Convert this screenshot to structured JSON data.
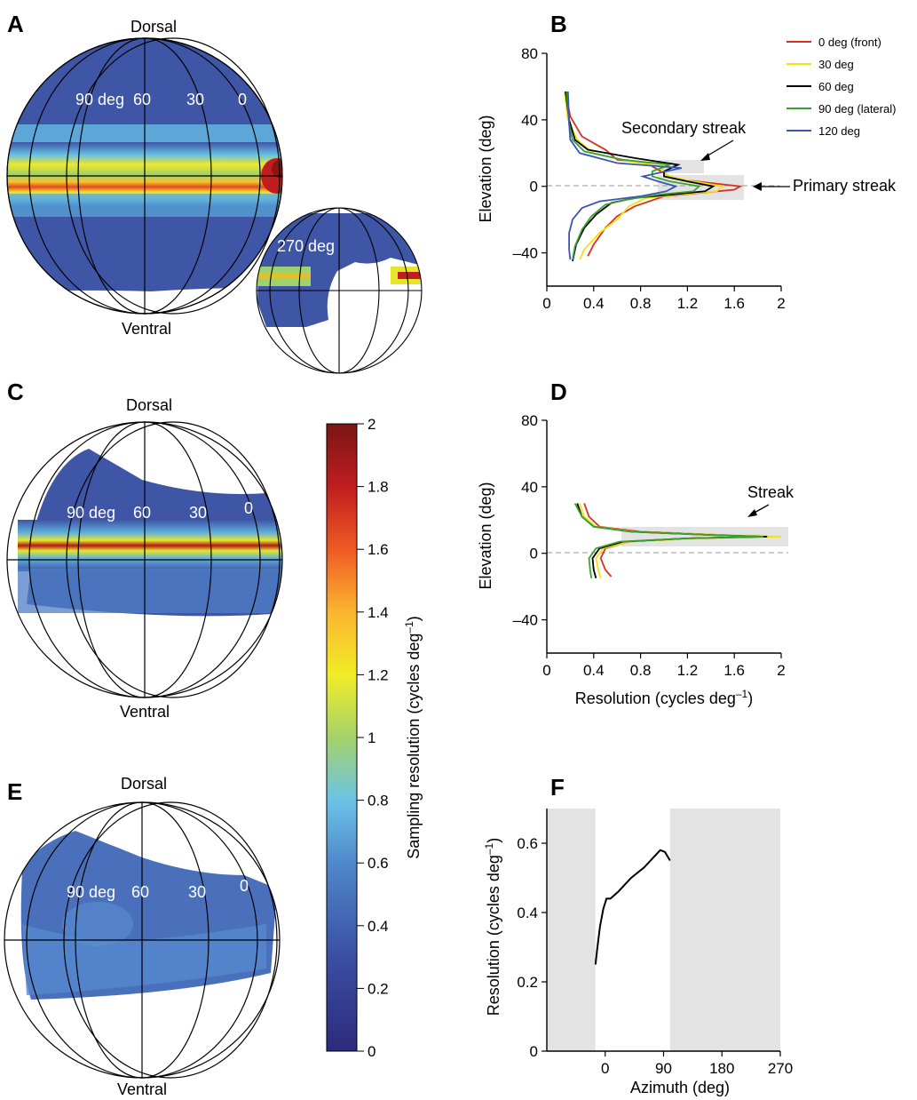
{
  "colors": {
    "blue": "#3f55a6",
    "light_blue": "#4f8fce",
    "gray_band": "#e3e3e3",
    "series": [
      "#d7301f",
      "#f2e311",
      "#000000",
      "#3aa232",
      "#3c55b4"
    ]
  },
  "panels": {
    "A": {
      "letter": "A",
      "dorsal": "Dorsal",
      "ventral": "Ventral",
      "azimuth_labels": [
        "90 deg",
        "60",
        "30",
        "0"
      ],
      "inset_label": "270 deg"
    },
    "C": {
      "letter": "C",
      "dorsal": "Dorsal",
      "ventral": "Ventral",
      "azimuth_labels": [
        "90 deg",
        "60",
        "30",
        "0"
      ]
    },
    "E": {
      "letter": "E",
      "dorsal": "Dorsal",
      "ventral": "Ventral",
      "azimuth_labels": [
        "90 deg",
        "60",
        "30",
        "0"
      ]
    }
  },
  "colorbar": {
    "label": "Sampling resolution (cycles deg",
    "label_sup": "–1",
    "label_end": ")",
    "ticks": [
      "2",
      "1.8",
      "1.6",
      "1.4",
      "1.2",
      "1",
      "0.8",
      "0.6",
      "0.4",
      "0.2",
      "0"
    ]
  },
  "chart_data": [
    {
      "panel": "B",
      "type": "line",
      "ylabel": "Elevation (deg)",
      "xlabel": "",
      "xlim": [
        0,
        2
      ],
      "ylim": [
        -60,
        80
      ],
      "xticks": [
        "0",
        "0.4",
        "0.8",
        "1.2",
        "1.6",
        "2"
      ],
      "yticks": [
        "80",
        "40",
        "0",
        "–40"
      ],
      "annotations": [
        "Secondary streak",
        "Primary streak"
      ],
      "series": [
        {
          "name": "0 deg (front)",
          "points": [
            [
              0.16,
              57
            ],
            [
              0.2,
              42
            ],
            [
              0.3,
              30
            ],
            [
              0.45,
              24
            ],
            [
              0.5,
              22
            ],
            [
              0.6,
              16
            ],
            [
              0.85,
              14
            ],
            [
              1.0,
              8
            ],
            [
              1.05,
              6
            ],
            [
              1.15,
              4
            ],
            [
              1.4,
              2
            ],
            [
              1.65,
              0
            ],
            [
              1.6,
              -2
            ],
            [
              1.3,
              -4
            ],
            [
              1.0,
              -6
            ],
            [
              0.75,
              -12
            ],
            [
              0.6,
              -18
            ],
            [
              0.5,
              -25
            ],
            [
              0.4,
              -35
            ],
            [
              0.35,
              -42
            ]
          ]
        },
        {
          "name": "30 deg",
          "points": [
            [
              0.15,
              57
            ],
            [
              0.18,
              40
            ],
            [
              0.26,
              28
            ],
            [
              0.4,
              20
            ],
            [
              0.7,
              15
            ],
            [
              1.0,
              12
            ],
            [
              0.98,
              9
            ],
            [
              1.05,
              6
            ],
            [
              1.25,
              3
            ],
            [
              1.5,
              0
            ],
            [
              1.45,
              -3
            ],
            [
              1.1,
              -5
            ],
            [
              0.85,
              -7
            ],
            [
              0.7,
              -12
            ],
            [
              0.6,
              -20
            ],
            [
              0.45,
              -28
            ],
            [
              0.32,
              -38
            ],
            [
              0.28,
              -44
            ]
          ]
        },
        {
          "name": "60 deg",
          "points": [
            [
              0.16,
              57
            ],
            [
              0.19,
              40
            ],
            [
              0.24,
              28
            ],
            [
              0.35,
              22
            ],
            [
              0.75,
              17
            ],
            [
              1.12,
              13
            ],
            [
              1.0,
              9
            ],
            [
              1.0,
              6
            ],
            [
              1.2,
              3
            ],
            [
              1.42,
              0
            ],
            [
              1.35,
              -3
            ],
            [
              1.05,
              -5
            ],
            [
              0.75,
              -7
            ],
            [
              0.55,
              -10
            ],
            [
              0.42,
              -17
            ],
            [
              0.32,
              -25
            ],
            [
              0.25,
              -35
            ],
            [
              0.22,
              -45
            ]
          ]
        },
        {
          "name": "90 deg (lateral)",
          "points": [
            [
              0.17,
              57
            ],
            [
              0.19,
              38
            ],
            [
              0.22,
              28
            ],
            [
              0.32,
              21
            ],
            [
              0.65,
              16
            ],
            [
              1.05,
              13
            ],
            [
              0.9,
              9
            ],
            [
              0.9,
              6
            ],
            [
              1.05,
              3
            ],
            [
              1.3,
              0
            ],
            [
              1.25,
              -3
            ],
            [
              0.95,
              -5
            ],
            [
              0.68,
              -8
            ],
            [
              0.5,
              -11
            ],
            [
              0.38,
              -18
            ],
            [
              0.3,
              -26
            ],
            [
              0.24,
              -36
            ],
            [
              0.22,
              -44
            ]
          ]
        },
        {
          "name": "120 deg",
          "points": [
            [
              0.18,
              57
            ],
            [
              0.19,
              38
            ],
            [
              0.2,
              28
            ],
            [
              0.28,
              20
            ],
            [
              0.6,
              14
            ],
            [
              1.15,
              11
            ],
            [
              0.95,
              8
            ],
            [
              0.82,
              6
            ],
            [
              0.95,
              3
            ],
            [
              1.1,
              0
            ],
            [
              1.02,
              -3
            ],
            [
              0.8,
              -6
            ],
            [
              0.45,
              -9
            ],
            [
              0.3,
              -13
            ],
            [
              0.22,
              -20
            ],
            [
              0.19,
              -28
            ],
            [
              0.19,
              -38
            ],
            [
              0.2,
              -44
            ]
          ]
        }
      ]
    },
    {
      "panel": "D",
      "type": "line",
      "ylabel": "Elevation (deg)",
      "xlabel": "Resolution (cycles deg",
      "xlabel_sup": "–1",
      "xlabel_end": ")",
      "xlim": [
        0,
        2
      ],
      "ylim": [
        -60,
        80
      ],
      "xticks": [
        "0",
        "0.4",
        "0.8",
        "1.2",
        "1.6",
        "2"
      ],
      "yticks": [
        "80",
        "40",
        "0",
        "–40"
      ],
      "annotations": [
        "Streak"
      ],
      "series": [
        {
          "name": "0 deg (front)",
          "points": [
            [
              0.32,
              30
            ],
            [
              0.36,
              22
            ],
            [
              0.45,
              16
            ],
            [
              0.8,
              13
            ],
            [
              1.5,
              11
            ],
            [
              1.8,
              10
            ],
            [
              1.2,
              9
            ],
            [
              0.7,
              7
            ],
            [
              0.5,
              3
            ],
            [
              0.46,
              -3
            ],
            [
              0.5,
              -10
            ],
            [
              0.55,
              -14
            ]
          ]
        },
        {
          "name": "30 deg",
          "points": [
            [
              0.28,
              30
            ],
            [
              0.32,
              22
            ],
            [
              0.42,
              16
            ],
            [
              0.75,
              13
            ],
            [
              1.5,
              11
            ],
            [
              2.0,
              10
            ],
            [
              1.3,
              9
            ],
            [
              0.7,
              7
            ],
            [
              0.48,
              3
            ],
            [
              0.42,
              -3
            ],
            [
              0.44,
              -10
            ],
            [
              0.46,
              -15
            ]
          ]
        },
        {
          "name": "60 deg",
          "points": [
            [
              0.26,
              30
            ],
            [
              0.3,
              22
            ],
            [
              0.4,
              16
            ],
            [
              0.72,
              13
            ],
            [
              1.4,
              11
            ],
            [
              1.88,
              10
            ],
            [
              1.2,
              9
            ],
            [
              0.65,
              7
            ],
            [
              0.45,
              3
            ],
            [
              0.39,
              -3
            ],
            [
              0.4,
              -10
            ],
            [
              0.42,
              -15
            ]
          ]
        },
        {
          "name": "90 deg (lateral)",
          "points": [
            [
              0.24,
              30
            ],
            [
              0.3,
              22
            ],
            [
              0.4,
              16
            ],
            [
              0.72,
              13
            ],
            [
              1.4,
              11
            ],
            [
              1.85,
              10
            ],
            [
              1.2,
              9
            ],
            [
              0.62,
              7
            ],
            [
              0.42,
              3
            ],
            [
              0.36,
              -3
            ],
            [
              0.37,
              -10
            ],
            [
              0.38,
              -15
            ]
          ]
        }
      ]
    },
    {
      "panel": "F",
      "type": "line",
      "xlabel": "Azimuth (deg)",
      "ylabel": "Resolution (cycles deg",
      "ylabel_sup": "–1",
      "ylabel_end": ")",
      "xlim": [
        -90,
        270
      ],
      "ylim": [
        0,
        0.7
      ],
      "xticks": [
        "0",
        "90",
        "180",
        "270"
      ],
      "yticks": [
        "0",
        "0.2",
        "0.4",
        "0.6"
      ],
      "shaded_x": [
        [
          -90,
          -15
        ],
        [
          100,
          270
        ]
      ],
      "series": [
        {
          "name": "",
          "points": [
            [
              -15,
              0.25
            ],
            [
              -12,
              0.3
            ],
            [
              -8,
              0.36
            ],
            [
              -3,
              0.41
            ],
            [
              2,
              0.44
            ],
            [
              8,
              0.44
            ],
            [
              20,
              0.46
            ],
            [
              40,
              0.5
            ],
            [
              60,
              0.53
            ],
            [
              75,
              0.56
            ],
            [
              85,
              0.58
            ],
            [
              92,
              0.575
            ],
            [
              100,
              0.55
            ]
          ]
        }
      ]
    }
  ]
}
